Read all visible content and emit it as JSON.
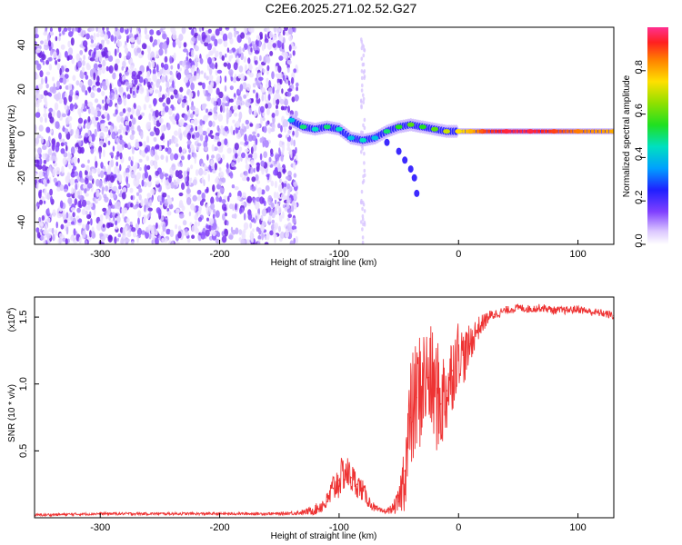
{
  "title": "C2E6.2025.271.02.52.G27",
  "chart_data": [
    {
      "type": "heatmap",
      "name": "spectrogram",
      "xlabel": "Height of straight line (km)",
      "ylabel": "Frequency (Hz)",
      "xlim": [
        -355,
        130
      ],
      "ylim": [
        -50,
        48
      ],
      "x_ticks": [
        -300,
        -200,
        -100,
        0,
        100
      ],
      "x_tick_labels": [
        "-300",
        "-200",
        "-100",
        "0",
        "100"
      ],
      "y_ticks": [
        -40,
        -20,
        0,
        20,
        40
      ],
      "y_tick_labels": [
        "-40",
        "-20",
        "0",
        "20",
        "40"
      ],
      "noise_region_x": [
        -355,
        -135
      ],
      "signal_track": {
        "x": [
          -140,
          -130,
          -120,
          -110,
          -100,
          -90,
          -80,
          -70,
          -60,
          -50,
          -40,
          -30,
          -20,
          -10,
          0,
          10,
          20,
          40,
          60,
          80,
          100,
          130
        ],
        "freq": [
          6,
          3,
          2,
          3,
          2,
          -2,
          -3,
          -2,
          1,
          3,
          4,
          3,
          2,
          1,
          1,
          1,
          1,
          1,
          1,
          1,
          1,
          1
        ],
        "amplitude": [
          0.4,
          0.5,
          0.45,
          0.5,
          0.45,
          0.4,
          0.45,
          0.4,
          0.5,
          0.55,
          0.6,
          0.55,
          0.6,
          0.7,
          0.75,
          0.8,
          0.9,
          0.95,
          0.95,
          0.9,
          0.85,
          0.8
        ]
      },
      "descending_branch": {
        "x": [
          -70,
          -60,
          -50,
          -45,
          -40,
          -37,
          -35
        ],
        "freq": [
          -1,
          -4,
          -8,
          -12,
          -16,
          -20,
          -27
        ]
      },
      "colorbar": {
        "label": "Normalized spectral amplitude",
        "range": [
          0,
          1
        ],
        "ticks": [
          0.0,
          0.2,
          0.4,
          0.6,
          0.8
        ],
        "tick_labels": [
          "0.0",
          "0.2",
          "0.4",
          "0.6",
          "0.8"
        ]
      }
    },
    {
      "type": "line",
      "name": "snr",
      "xlabel": "Height of straight line (km)",
      "ylabel": "SNR (10 * v/v)",
      "y_multiplier": "(x10",
      "y_multiplier_exp": "4",
      "xlim": [
        -355,
        130
      ],
      "ylim": [
        0,
        1.65
      ],
      "x_ticks": [
        -300,
        -200,
        -100,
        0,
        100
      ],
      "x_tick_labels": [
        "-300",
        "-200",
        "-100",
        "0",
        "100"
      ],
      "y_ticks": [
        0.5,
        1.0,
        1.5
      ],
      "y_tick_labels": [
        "0.5",
        "1.0",
        "1.5"
      ],
      "line_color": "#ee3333",
      "series": [
        {
          "name": "SNR",
          "x": [
            -355,
            -300,
            -250,
            -200,
            -150,
            -130,
            -120,
            -110,
            -105,
            -100,
            -95,
            -90,
            -85,
            -80,
            -75,
            -70,
            -65,
            -60,
            -55,
            -50,
            -45,
            -40,
            -35,
            -30,
            -25,
            -20,
            -15,
            -10,
            -5,
            0,
            5,
            10,
            15,
            20,
            25,
            30,
            40,
            50,
            60,
            70,
            80,
            90,
            100,
            110,
            120,
            130
          ],
          "y": [
            0.02,
            0.03,
            0.03,
            0.03,
            0.03,
            0.04,
            0.06,
            0.12,
            0.22,
            0.28,
            0.35,
            0.3,
            0.25,
            0.2,
            0.12,
            0.07,
            0.05,
            0.05,
            0.07,
            0.12,
            0.35,
            0.75,
            0.9,
            1.0,
            1.05,
            0.95,
            0.85,
            0.95,
            1.1,
            1.25,
            1.2,
            1.3,
            1.4,
            1.45,
            1.5,
            1.52,
            1.55,
            1.57,
            1.56,
            1.57,
            1.55,
            1.55,
            1.56,
            1.54,
            1.53,
            1.51
          ],
          "spread": [
            0.01,
            0.01,
            0.01,
            0.01,
            0.01,
            0.02,
            0.04,
            0.07,
            0.12,
            0.14,
            0.14,
            0.12,
            0.1,
            0.08,
            0.05,
            0.03,
            0.02,
            0.02,
            0.04,
            0.1,
            0.3,
            0.45,
            0.45,
            0.45,
            0.4,
            0.45,
            0.4,
            0.35,
            0.3,
            0.25,
            0.2,
            0.15,
            0.1,
            0.07,
            0.05,
            0.04,
            0.03,
            0.03,
            0.03,
            0.03,
            0.03,
            0.03,
            0.03,
            0.03,
            0.03,
            0.03
          ]
        }
      ]
    }
  ]
}
